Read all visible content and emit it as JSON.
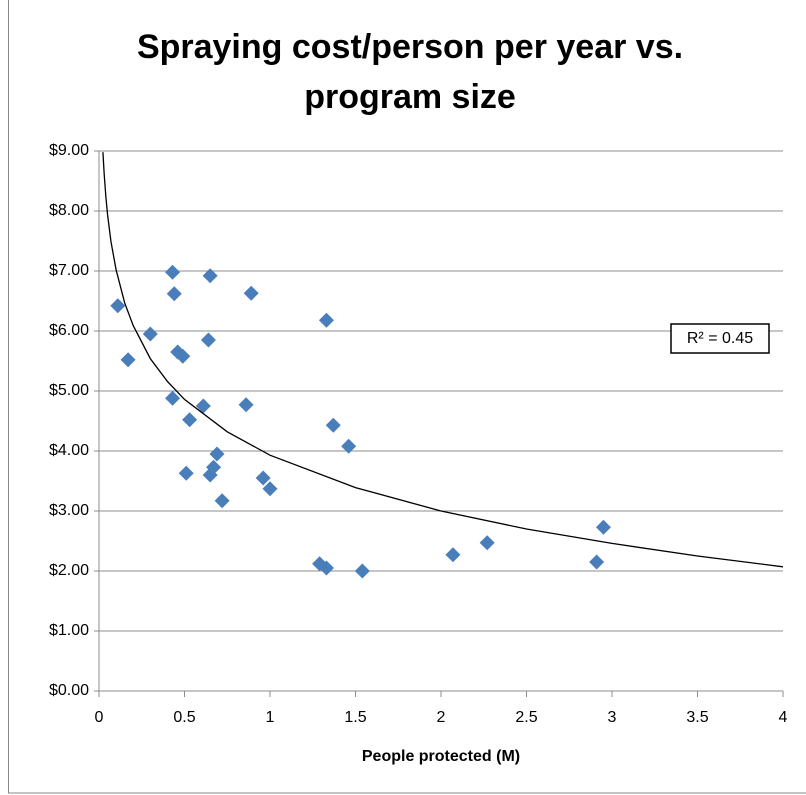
{
  "chart_data": {
    "type": "scatter",
    "title": "Spraying cost/person per year vs. program size",
    "x_label": "People protected (M)",
    "annotation": "R² = 0.45",
    "color": "#4a7ebb",
    "x": [
      0.11,
      0.17,
      0.3,
      0.43,
      0.44,
      0.46,
      0.49,
      0.43,
      0.53,
      0.51,
      0.61,
      0.64,
      0.65,
      0.65,
      0.67,
      0.69,
      0.72,
      0.89,
      0.86,
      0.96,
      1.0,
      1.33,
      1.37,
      1.46,
      1.29,
      1.33,
      1.54,
      2.07,
      2.27,
      2.91,
      2.95
    ],
    "values": [
      6.42,
      5.52,
      5.95,
      6.98,
      6.62,
      5.65,
      5.58,
      4.88,
      4.52,
      3.63,
      4.75,
      5.85,
      6.92,
      3.6,
      3.73,
      3.95,
      3.17,
      6.63,
      4.77,
      3.55,
      3.37,
      6.18,
      4.43,
      4.08,
      2.12,
      2.05,
      2.0,
      2.27,
      2.47,
      2.15,
      2.73
    ],
    "trendline": {
      "type": "log",
      "color": "#000000",
      "x": [
        0.023,
        0.03,
        0.04,
        0.05,
        0.07,
        0.1,
        0.15,
        0.2,
        0.3,
        0.4,
        0.5,
        0.75,
        1,
        1.5,
        2,
        2.5,
        3,
        3.5,
        4
      ],
      "values": [
        8.98,
        8.63,
        8.24,
        7.94,
        7.49,
        7.02,
        6.47,
        6.09,
        5.54,
        5.16,
        4.86,
        4.32,
        3.93,
        3.39,
        3.0,
        2.7,
        2.46,
        2.25,
        2.07
      ]
    },
    "xlim": [
      0,
      4
    ],
    "xticks": [
      0,
      0.5,
      1,
      1.5,
      2,
      2.5,
      3,
      3.5,
      4
    ],
    "ylim": [
      0,
      9
    ],
    "yticks": [
      {
        "value": 0,
        "label": "$0.00"
      },
      {
        "value": 1,
        "label": "$1.00"
      },
      {
        "value": 2,
        "label": "$2.00"
      },
      {
        "value": 3,
        "label": "$3.00"
      },
      {
        "value": 4,
        "label": "$4.00"
      },
      {
        "value": 5,
        "label": "$5.00"
      },
      {
        "value": 6,
        "label": "$6.00"
      },
      {
        "value": 7,
        "label": "$7.00"
      },
      {
        "value": 8,
        "label": "$8.00"
      },
      {
        "value": 9,
        "label": "$9.00"
      }
    ],
    "grid": true
  }
}
